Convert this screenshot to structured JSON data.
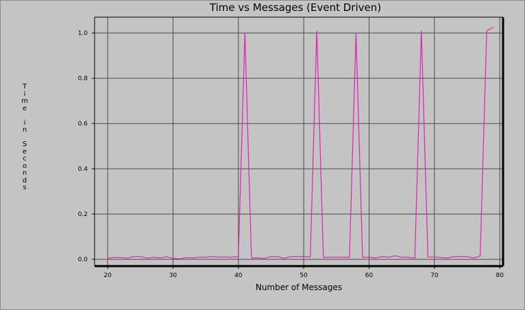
{
  "chart_data": {
    "type": "line",
    "title": "Time vs Messages (Event Driven)",
    "xlabel": "Number of Messages",
    "ylabel": "Time in Seconds",
    "xlim": [
      18,
      80.5
    ],
    "ylim": [
      -0.03,
      1.07
    ],
    "x_ticks": [
      "20",
      "30",
      "40",
      "50",
      "60",
      "70",
      "80"
    ],
    "y_ticks": [
      "0.0",
      "0.2",
      "0.4",
      "0.6",
      "0.8",
      "1.0"
    ],
    "grid": true,
    "line_color": "#e020b0",
    "x": [
      20,
      21,
      22,
      23,
      24,
      25,
      26,
      27,
      28,
      29,
      30,
      31,
      32,
      33,
      34,
      35,
      36,
      37,
      38,
      39,
      40,
      41,
      42,
      43,
      44,
      45,
      46,
      47,
      48,
      49,
      50,
      51,
      52,
      53,
      54,
      55,
      56,
      57,
      58,
      59,
      60,
      61,
      62,
      63,
      64,
      65,
      66,
      67,
      68,
      69,
      70,
      71,
      72,
      73,
      74,
      75,
      76,
      77,
      78,
      79
    ],
    "y": [
      0.005,
      0.008,
      0.008,
      0.005,
      0.012,
      0.012,
      0.005,
      0.009,
      0.006,
      0.011,
      0.005,
      0.002,
      0.008,
      0.006,
      0.009,
      0.009,
      0.012,
      0.01,
      0.01,
      0.009,
      0.012,
      1.0,
      0.006,
      0.006,
      0.004,
      0.012,
      0.012,
      0.004,
      0.012,
      0.012,
      0.012,
      0.01,
      1.01,
      0.009,
      0.009,
      0.009,
      0.009,
      0.009,
      1.0,
      0.009,
      0.009,
      0.006,
      0.012,
      0.009,
      0.016,
      0.009,
      0.009,
      0.005,
      1.01,
      0.01,
      0.01,
      0.008,
      0.006,
      0.012,
      0.012,
      0.012,
      0.006,
      0.015,
      1.01,
      1.025
    ]
  }
}
